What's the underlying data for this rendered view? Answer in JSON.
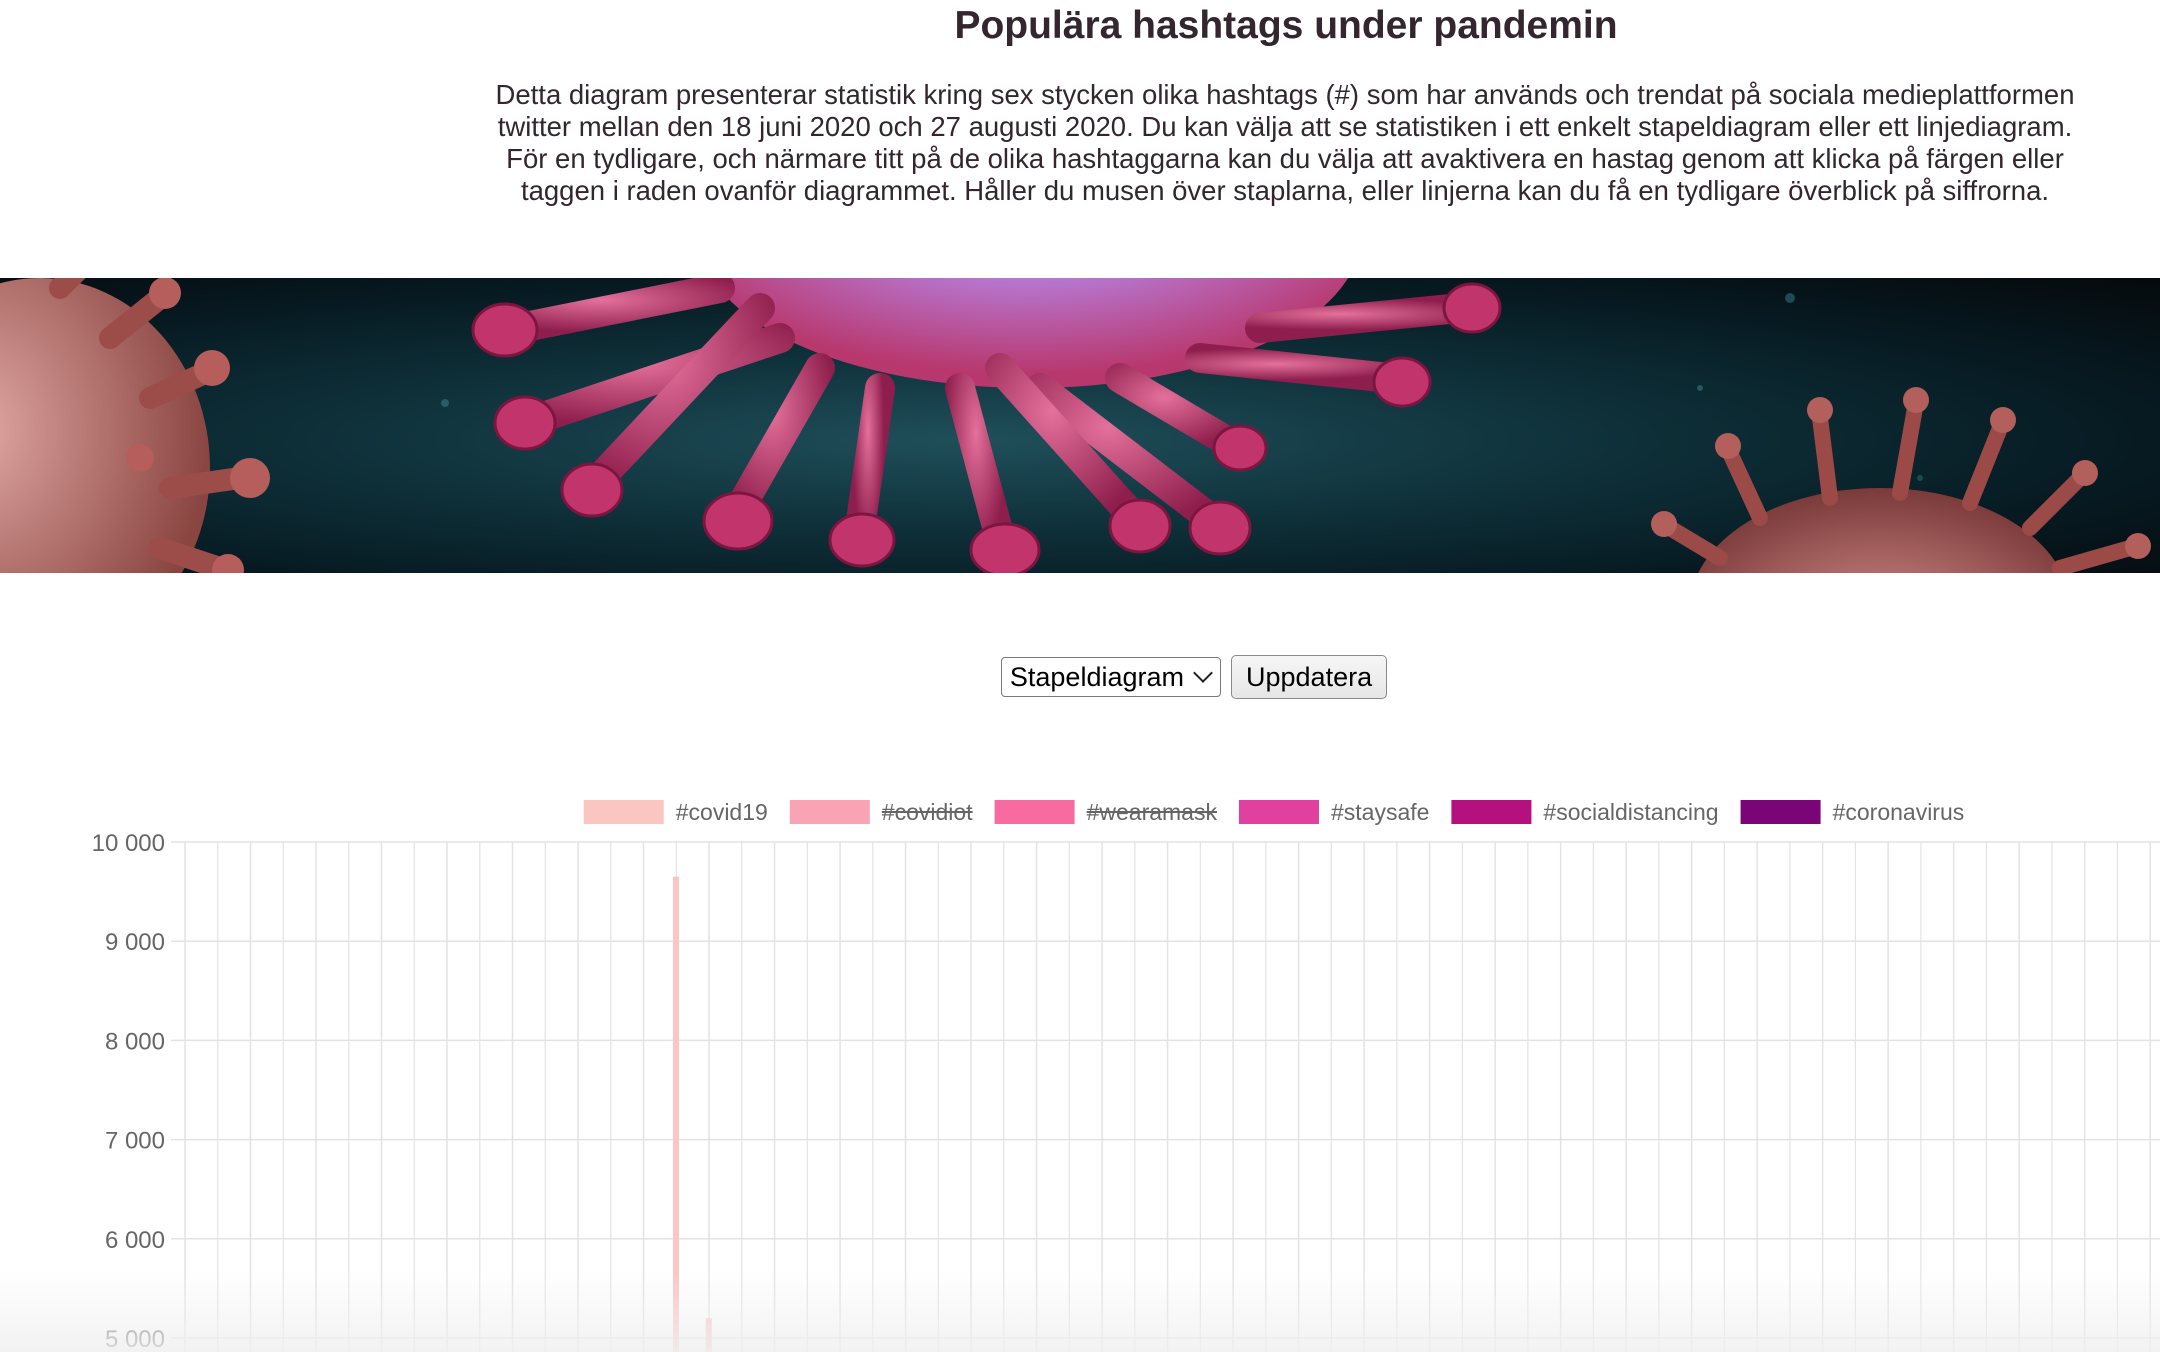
{
  "header": {
    "title": "Populära hashtags under pandemin",
    "intro_lines": [
      "Detta diagram presenterar statistik kring sex stycken olika hashtags (#) som har används och trendat på sociala medieplattformen",
      "twitter mellan den 18 juni 2020 och 27 augusti 2020. Du kan välja att se statistiken i ett enkelt stapeldiagram eller ett linjediagram.",
      "För en tydligare, och närmare titt på de olika hashtaggarna kan du välja att avaktivera en hastag genom att klicka på färgen eller",
      "taggen i raden ovanför diagrammet. Håller du musen över staplarna, eller linjerna kan du få en tydligare överblick på siffrorna."
    ]
  },
  "controls": {
    "select_value": "Stapeldiagram",
    "update_label": "Uppdatera"
  },
  "colors": {
    "text": "#33262e",
    "grid": "#e3e3e3",
    "tick": "#666666"
  },
  "chart_data": {
    "type": "bar",
    "title": "",
    "xlabel": "",
    "ylabel": "",
    "ylim": [
      5000,
      10000
    ],
    "y_ticks": [
      "10 000",
      "9 000",
      "8 000",
      "7 000",
      "6 000",
      "5 000"
    ],
    "y_tick_values": [
      10000,
      9000,
      8000,
      7000,
      6000,
      5000
    ],
    "grid": true,
    "legend_position": "top-center",
    "category_count": 31,
    "series": [
      {
        "name": "#covid19",
        "color": "#fbc6c2",
        "hidden": false,
        "points": [
          {
            "category": 7,
            "value": 9650
          },
          {
            "category": 7.5,
            "value": 5200
          }
        ]
      },
      {
        "name": "#covidiot",
        "color": "#f9a3b4",
        "hidden": true,
        "points": []
      },
      {
        "name": "#wearamask",
        "color": "#f76ba0",
        "hidden": true,
        "points": []
      },
      {
        "name": "#staysafe",
        "color": "#e0409e",
        "hidden": false,
        "points": []
      },
      {
        "name": "#socialdistancing",
        "color": "#b4107e",
        "hidden": false,
        "points": []
      },
      {
        "name": "#coronavirus",
        "color": "#7a0577",
        "hidden": false,
        "points": []
      }
    ]
  }
}
